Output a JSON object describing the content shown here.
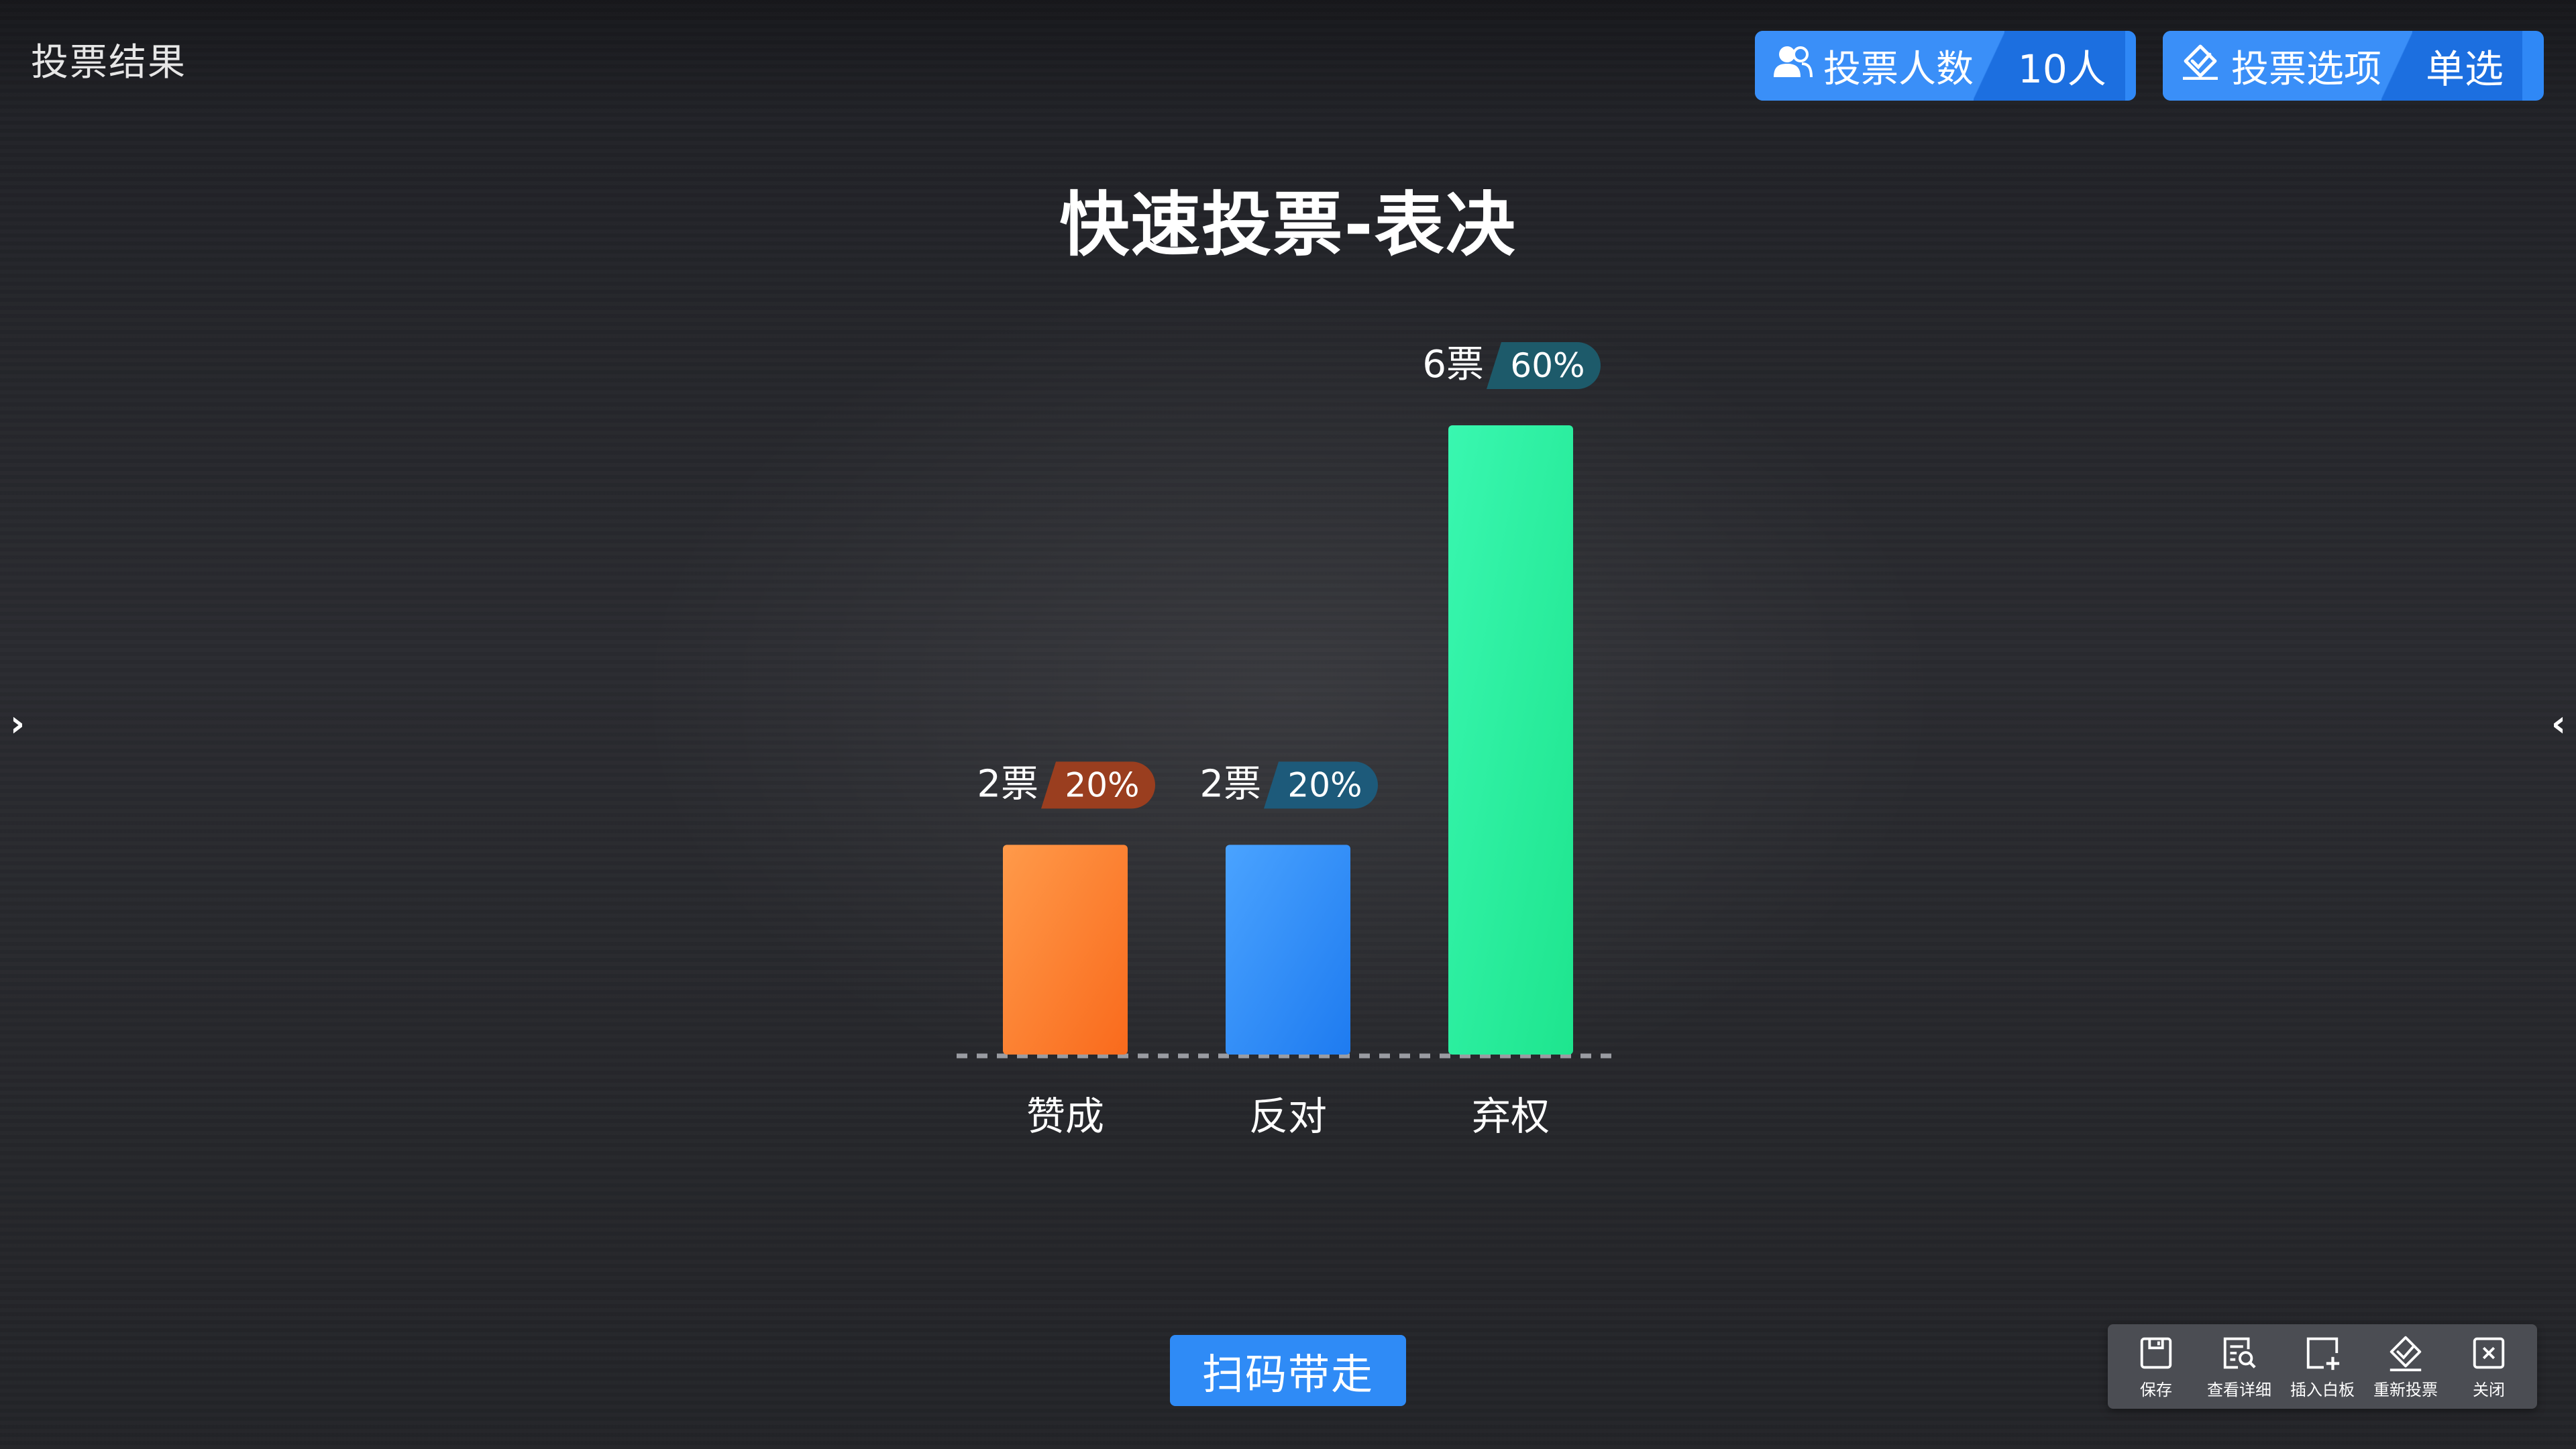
{
  "header": {
    "title": "投票结果",
    "voters_label": "投票人数",
    "voters_value": "10人",
    "options_label": "投票选项",
    "options_value": "单选"
  },
  "vote": {
    "title": "快速投票-表决",
    "scan_button_label": "扫码带走"
  },
  "chart_data": {
    "type": "bar",
    "categories": [
      "赞成",
      "反对",
      "弃权"
    ],
    "votes": [
      2,
      2,
      6
    ],
    "vote_labels": [
      "2票",
      "2票",
      "6票"
    ],
    "percent_labels": [
      "20%",
      "20%",
      "60%"
    ],
    "values": [
      20,
      20,
      60
    ],
    "bar_colors_top": [
      "#ff9a4a",
      "#4aa3ff",
      "#39f7b0"
    ],
    "bar_colors_bottom": [
      "#f96a1c",
      "#1e7bf0",
      "#1ee58e"
    ],
    "badge_colors": [
      "#9a3e1f",
      "#1d5a7a",
      "#1d5a6a"
    ]
  },
  "toolbar": {
    "items": [
      {
        "label": "保存",
        "icon": "save-icon"
      },
      {
        "label": "查看详细",
        "icon": "details-icon"
      },
      {
        "label": "插入白板",
        "icon": "insert-whiteboard-icon"
      },
      {
        "label": "重新投票",
        "icon": "revote-icon"
      },
      {
        "label": "关闭",
        "icon": "close-icon"
      }
    ]
  }
}
